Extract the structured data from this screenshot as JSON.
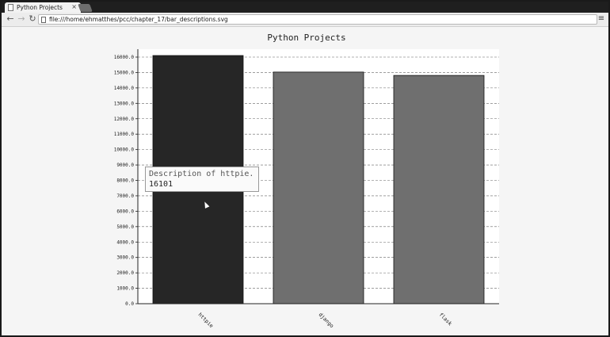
{
  "browser": {
    "tab_title": "Python Projects",
    "tab_close": "×",
    "url": "file:///home/ehmatthes/pcc/chapter_17/bar_descriptions.svg",
    "back_icon": "back-arrow-icon",
    "forward_icon": "forward-arrow-icon",
    "reload_icon": "reload-icon",
    "menu_icon": "hamburger-menu-icon"
  },
  "chart_data": {
    "type": "bar",
    "title": "Python Projects",
    "categories": [
      "httpie",
      "django",
      "flask"
    ],
    "values": [
      16101,
      15028,
      14810
    ],
    "ylim": [
      0,
      16000
    ],
    "yticks": [
      "0.0",
      "1000.0",
      "2000.0",
      "3000.0",
      "4000.0",
      "5000.0",
      "6000.0",
      "7000.0",
      "8000.0",
      "9000.0",
      "10000.0",
      "11000.0",
      "12000.0",
      "13000.0",
      "14000.0",
      "15000.0",
      "16000.0"
    ],
    "colors": [
      "#262626",
      "#6f6f6f",
      "#6f6f6f"
    ],
    "grid": true,
    "legend": "none"
  },
  "tooltip": {
    "label": "Description of httpie.",
    "value": "16101"
  }
}
